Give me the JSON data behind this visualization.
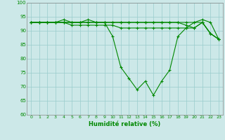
{
  "xlabel": "Humidité relative (%)",
  "x_ticks": [
    0,
    1,
    2,
    3,
    4,
    5,
    6,
    7,
    8,
    9,
    10,
    11,
    12,
    13,
    14,
    15,
    16,
    17,
    18,
    19,
    20,
    21,
    22,
    23
  ],
  "ylim": [
    60,
    100
  ],
  "yticks": [
    60,
    65,
    70,
    75,
    80,
    85,
    90,
    95,
    100
  ],
  "background_color": "#cce8e8",
  "grid_color": "#99cccc",
  "line_color": "#008800",
  "series": [
    [
      93,
      93,
      93,
      93,
      93,
      93,
      93,
      93,
      93,
      93,
      88,
      77,
      73,
      69,
      72,
      67,
      72,
      76,
      88,
      91,
      93,
      93,
      89,
      87
    ],
    [
      93,
      93,
      93,
      93,
      94,
      93,
      93,
      94,
      93,
      93,
      93,
      93,
      93,
      93,
      93,
      93,
      93,
      93,
      93,
      93,
      93,
      94,
      93,
      87
    ],
    [
      93,
      93,
      93,
      93,
      93,
      93,
      93,
      93,
      93,
      93,
      93,
      93,
      93,
      93,
      93,
      93,
      93,
      93,
      93,
      92,
      91,
      93,
      89,
      87
    ],
    [
      93,
      93,
      93,
      93,
      93,
      92,
      92,
      92,
      92,
      92,
      92,
      91,
      91,
      91,
      91,
      91,
      91,
      91,
      91,
      91,
      91,
      93,
      89,
      87
    ]
  ]
}
